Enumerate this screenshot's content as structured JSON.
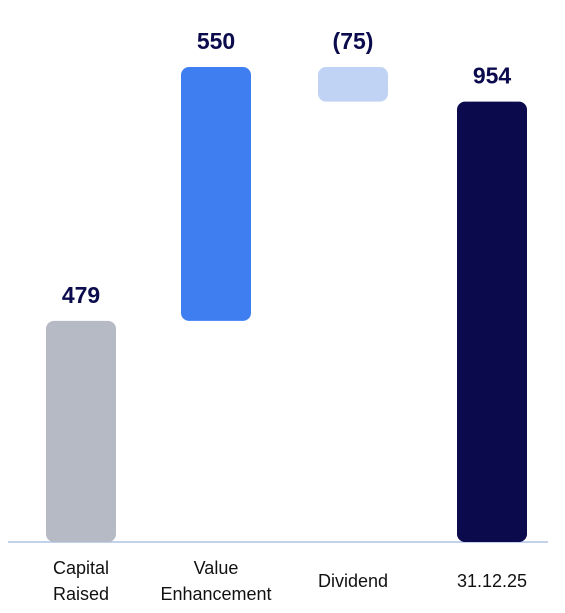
{
  "chart_data": {
    "type": "waterfall",
    "categories": [
      "Capital Raised",
      "Value Enhancement",
      "Dividend",
      "31.12.25"
    ],
    "values": [
      479,
      550,
      -75,
      954
    ],
    "value_labels": [
      "479",
      "550",
      "(75)",
      "954"
    ],
    "colors": [
      "#b6bac5",
      "#3f7ef0",
      "#c1d3f5",
      "#0a0a4c"
    ]
  }
}
